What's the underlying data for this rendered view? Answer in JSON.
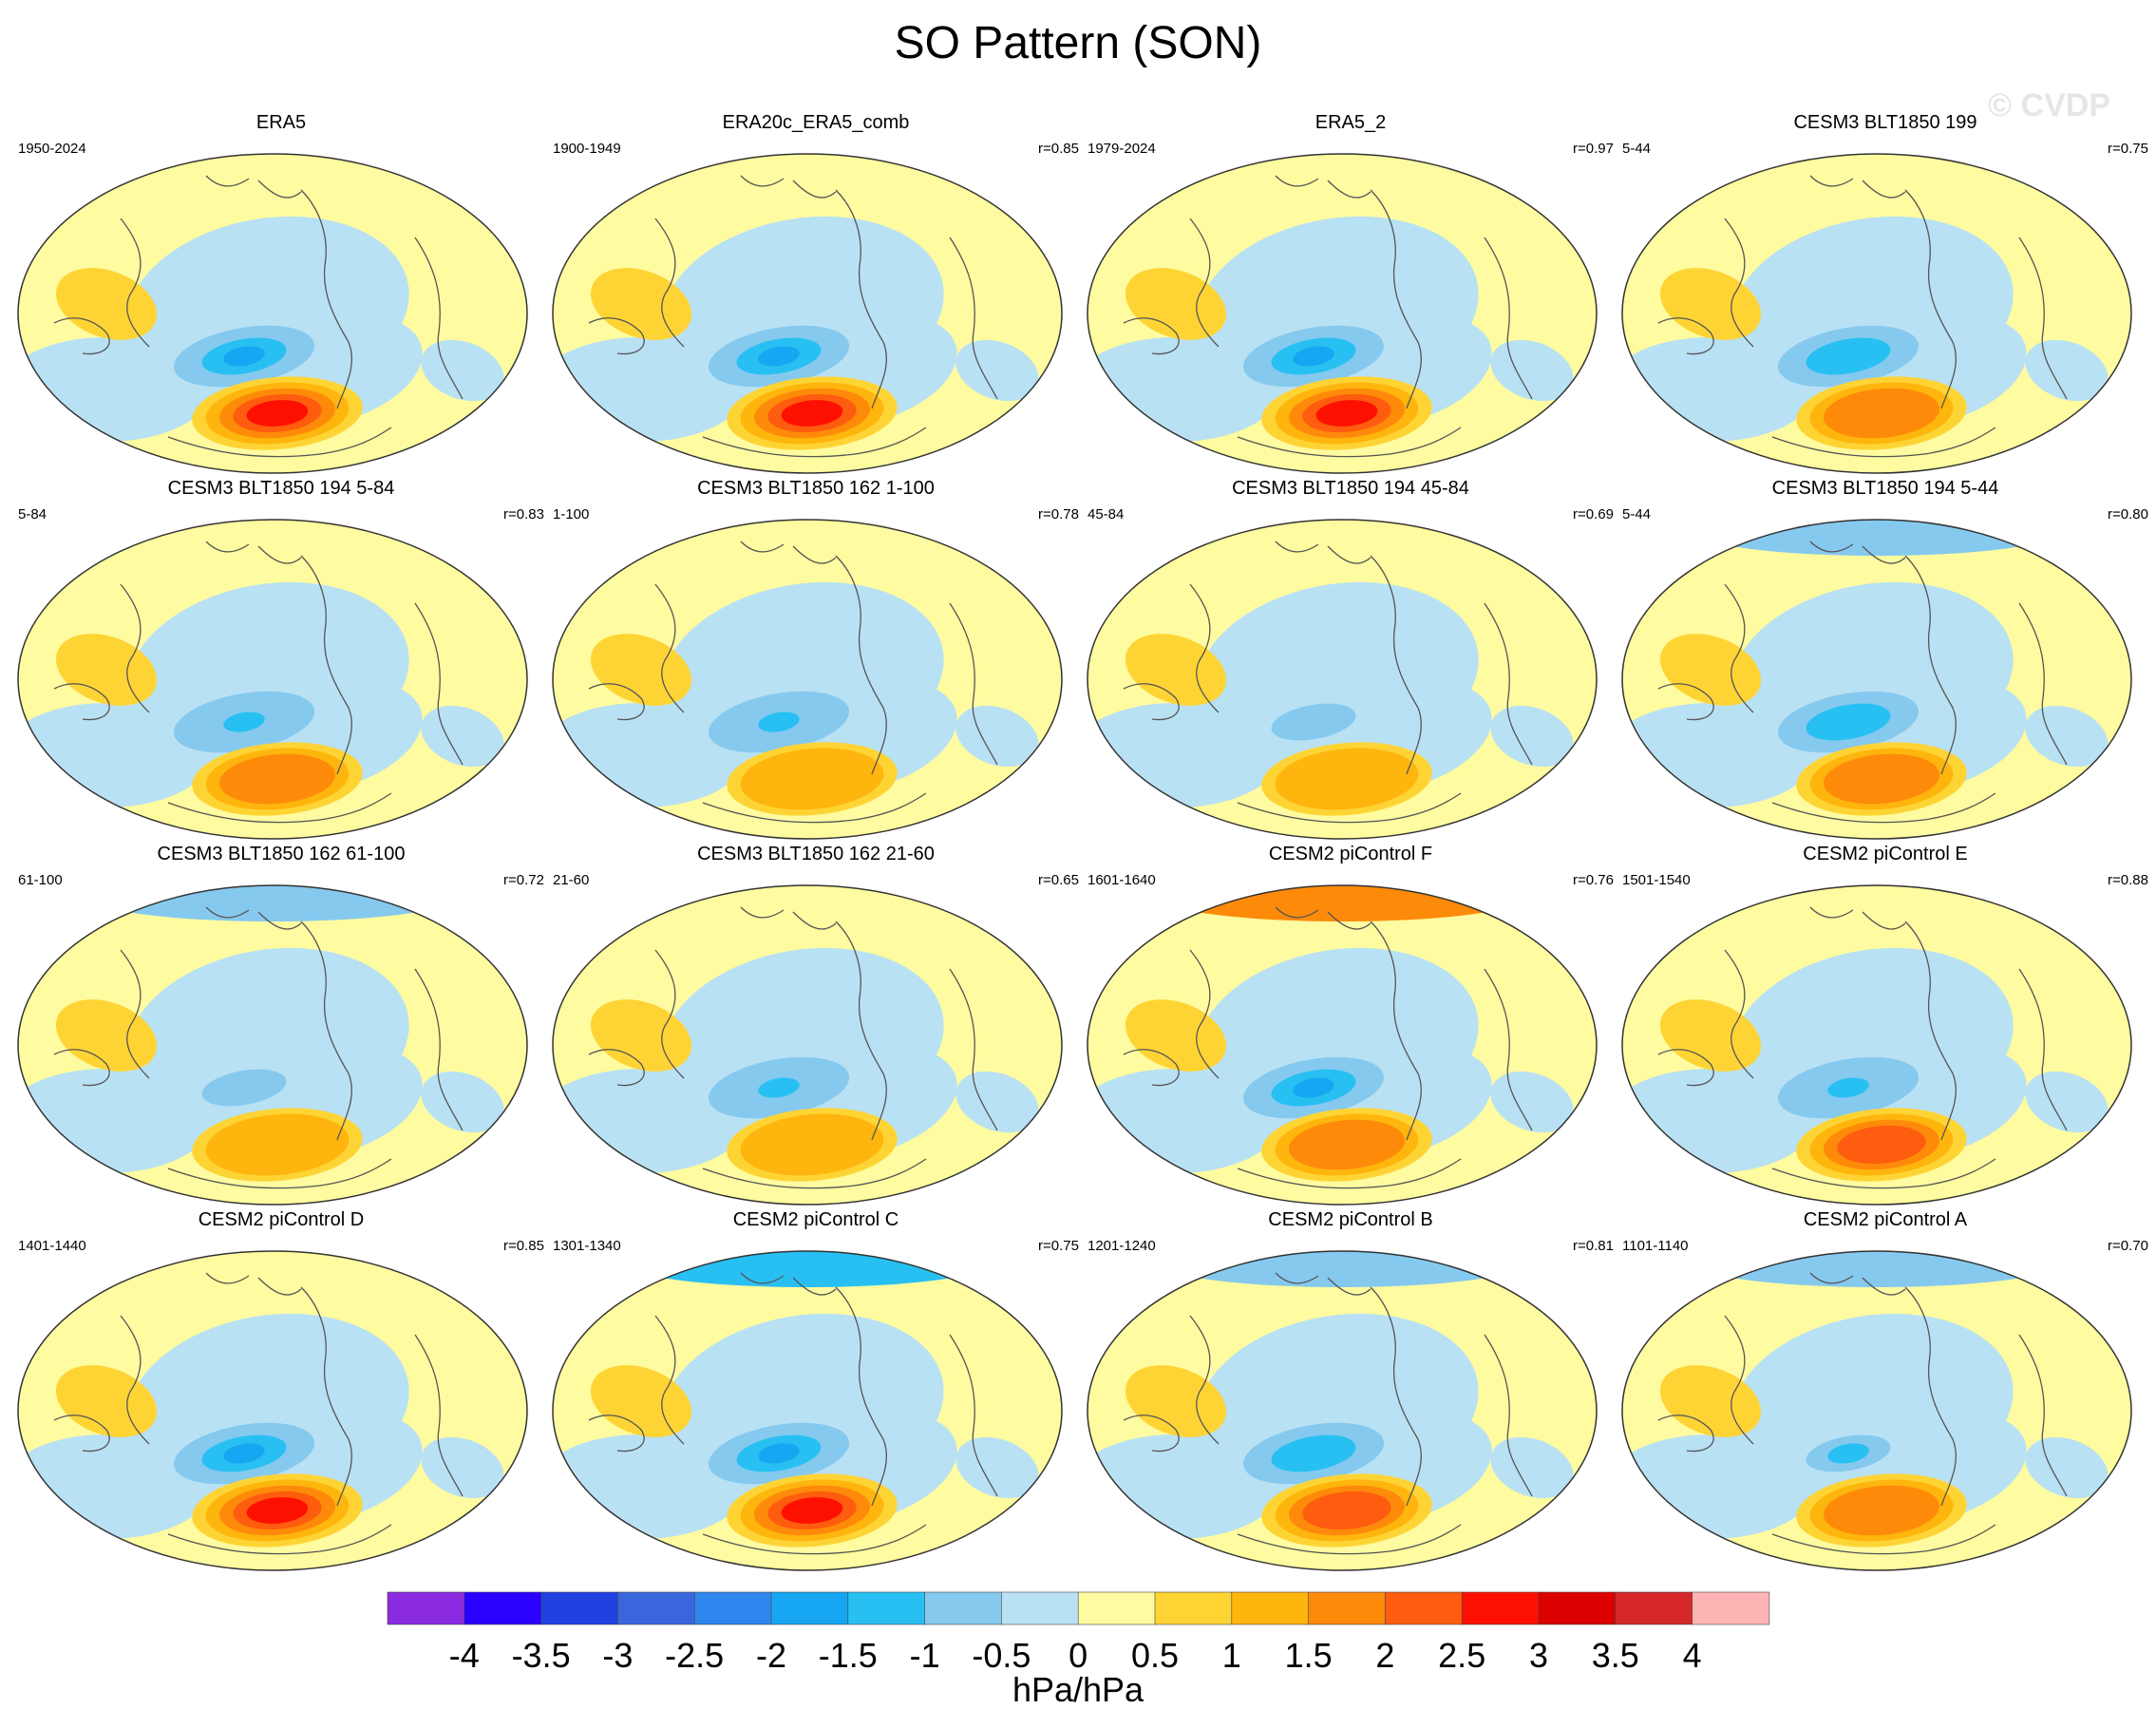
{
  "title": "SO Pattern (SON)",
  "watermark": "© CVDP",
  "units": "hPa/hPa",
  "colors": {
    "coast": "#555555",
    "levels": [
      "#8a2be2",
      "#2a00ff",
      "#2140e0",
      "#3a66dd",
      "#2f86ee",
      "#16a6f2",
      "#28c0f2",
      "#86c9ee",
      "#b9e1f4",
      "#fefba0",
      "#fed435",
      "#feb50d",
      "#fe8a0a",
      "#fe5c0e",
      "#fe1000",
      "#dc0000",
      "#d62828",
      "#ffb4b4"
    ]
  },
  "chart_data": {
    "type": "heatmap",
    "colorbar": {
      "ticks": [
        "-4",
        "-3.5",
        "-3",
        "-2.5",
        "-2",
        "-1.5",
        "-1",
        "-0.5",
        "0",
        "0.5",
        "1",
        "1.5",
        "2",
        "2.5",
        "3",
        "3.5",
        "4"
      ]
    },
    "panels": [
      {
        "title": "ERA5",
        "years": "1950-2024",
        "corr": "",
        "pos_peak": 2.8,
        "neg_peak": -1.6,
        "arctic": 0.0
      },
      {
        "title": "ERA20c_ERA5_comb",
        "years": "1900-1949",
        "corr": "r=0.85",
        "pos_peak": 3.0,
        "neg_peak": -2.0,
        "arctic": 0.3
      },
      {
        "title": "ERA5_2",
        "years": "1979-2024",
        "corr": "r=0.97",
        "pos_peak": 2.9,
        "neg_peak": -1.7,
        "arctic": 0.0
      },
      {
        "title": "CESM3 BLT1850 199",
        "years": "5-44",
        "corr": "r=0.75",
        "pos_peak": 1.8,
        "neg_peak": -1.5,
        "arctic": 0.3
      },
      {
        "title": "CESM3 BLT1850 194 5-84",
        "years": "5-84",
        "corr": "r=0.83",
        "pos_peak": 1.6,
        "neg_peak": -1.3,
        "arctic": 0.3
      },
      {
        "title": "CESM3 BLT1850 162 1-100",
        "years": "1-100",
        "corr": "r=0.78",
        "pos_peak": 1.2,
        "neg_peak": -1.3,
        "arctic": 0.0
      },
      {
        "title": "CESM3 BLT1850 194 45-84",
        "years": "45-84",
        "corr": "r=0.69",
        "pos_peak": 1.2,
        "neg_peak": -0.8,
        "arctic": 0.3
      },
      {
        "title": "CESM3 BLT1850 194 5-44",
        "years": "5-44",
        "corr": "r=0.80",
        "pos_peak": 1.6,
        "neg_peak": -1.4,
        "arctic": -0.6
      },
      {
        "title": "CESM3 BLT1850 162 61-100",
        "years": "61-100",
        "corr": "r=0.72",
        "pos_peak": 1.3,
        "neg_peak": -0.9,
        "arctic": -0.8
      },
      {
        "title": "CESM3 BLT1850 162 21-60",
        "years": "21-60",
        "corr": "r=0.65",
        "pos_peak": 1.3,
        "neg_peak": -1.3,
        "arctic": 0.3
      },
      {
        "title": "CESM2 piControl F",
        "years": "1601-1640",
        "corr": "r=0.76",
        "pos_peak": 1.8,
        "neg_peak": -1.6,
        "arctic": 1.8
      },
      {
        "title": "CESM2 piControl E",
        "years": "1501-1540",
        "corr": "r=0.88",
        "pos_peak": 2.2,
        "neg_peak": -1.3,
        "arctic": 0.3
      },
      {
        "title": "CESM2 piControl D",
        "years": "1401-1440",
        "corr": "r=0.85",
        "pos_peak": 2.6,
        "neg_peak": -1.6,
        "arctic": 0.3
      },
      {
        "title": "CESM2 piControl C",
        "years": "1301-1340",
        "corr": "r=0.75",
        "pos_peak": 2.6,
        "neg_peak": -2.0,
        "arctic": -1.2
      },
      {
        "title": "CESM2 piControl B",
        "years": "1201-1240",
        "corr": "r=0.81",
        "pos_peak": 2.2,
        "neg_peak": -1.4,
        "arctic": -0.6
      },
      {
        "title": "CESM2 piControl A",
        "years": "1101-1140",
        "corr": "r=0.70",
        "pos_peak": 1.6,
        "neg_peak": -1.1,
        "arctic": -0.9
      }
    ]
  }
}
